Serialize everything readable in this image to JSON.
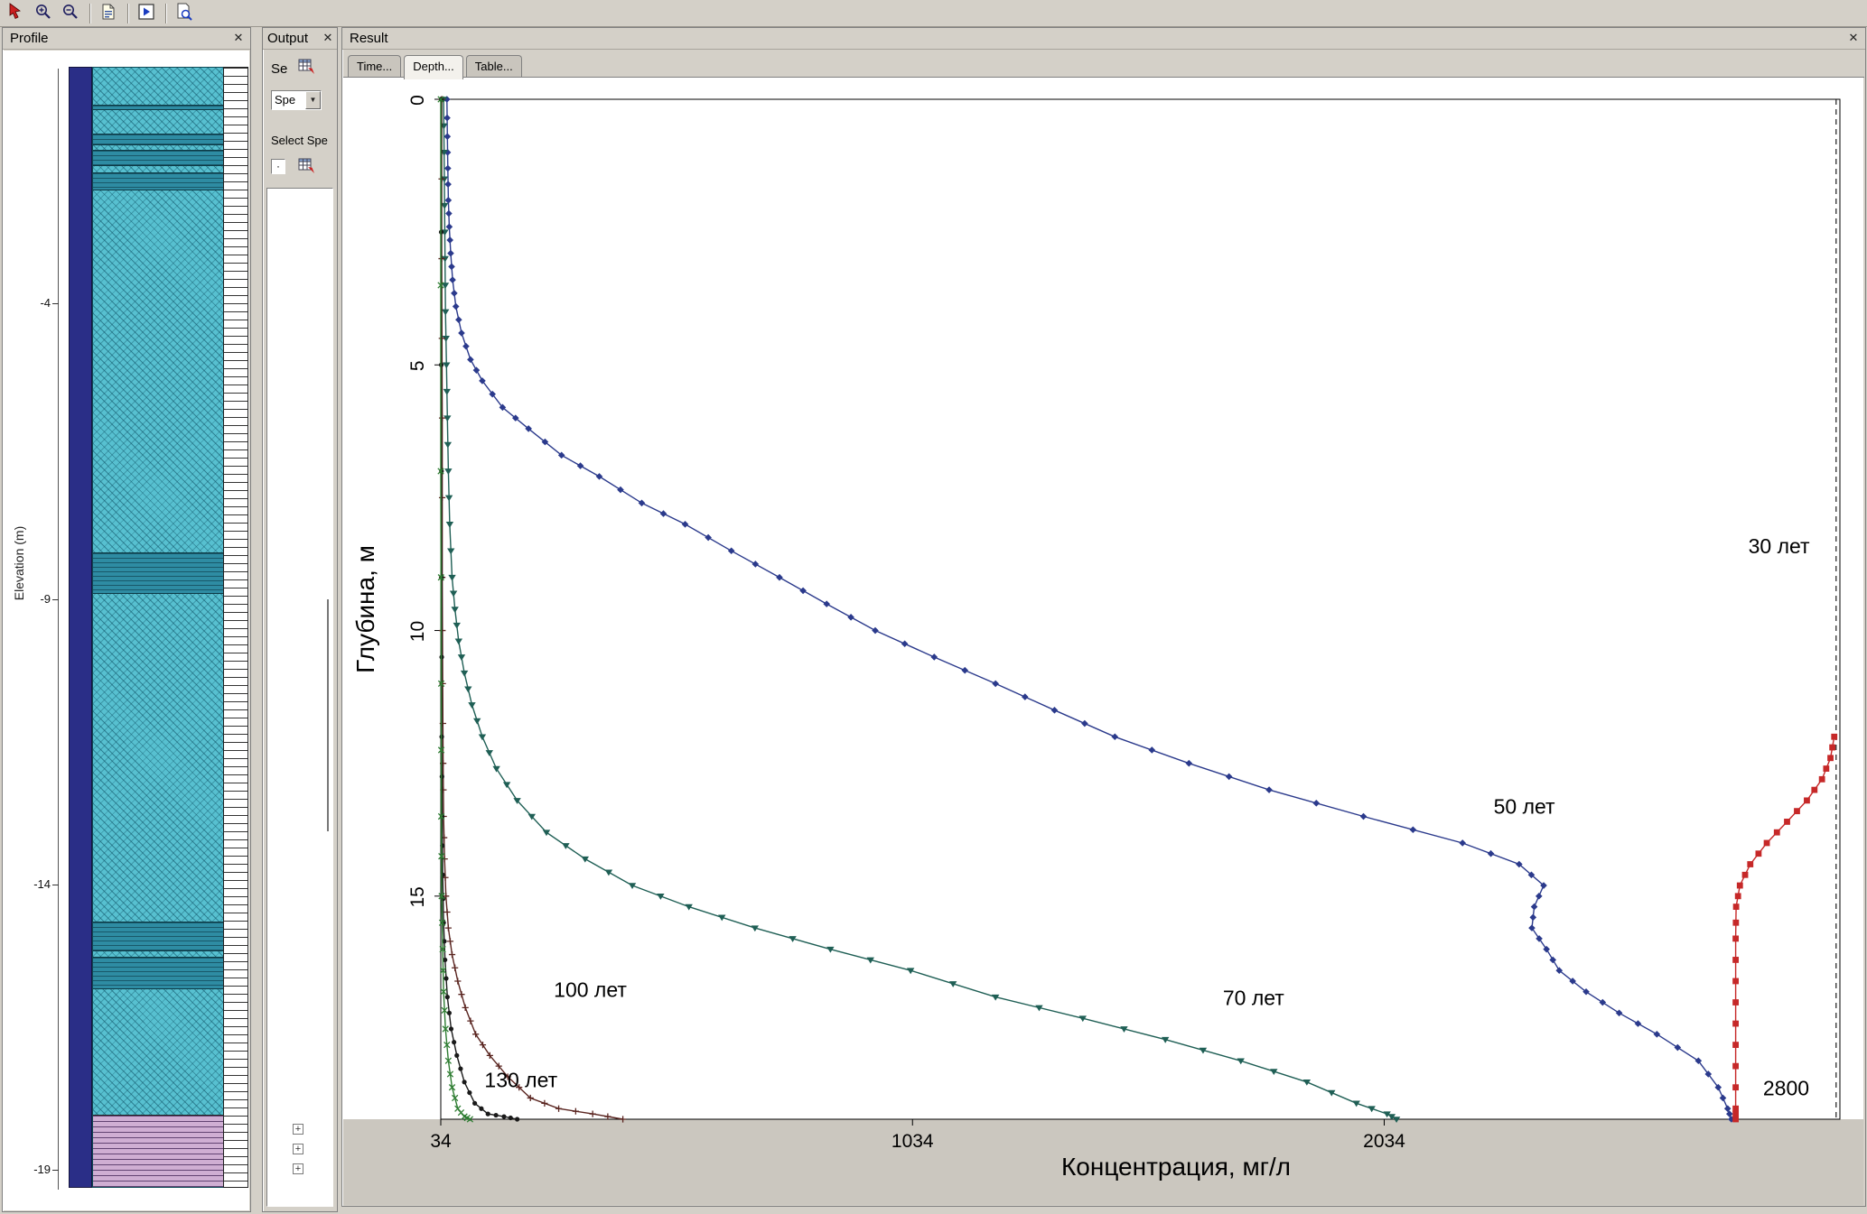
{
  "ui": {
    "close_glyph": "✕",
    "dropdown_glyph": "▼",
    "expand_glyph": "+",
    "mini_box_glyph": "·"
  },
  "theme": {
    "chrome": "#d4d0c8",
    "stripGray": "#cbc7bf",
    "soilBar": "#2a2e87",
    "soilTeal": "#57c0d0",
    "soilTealDark": "#2e8ca3",
    "soilPurple": "#cfaed3"
  },
  "toolbar": {
    "buttons": [
      "select-cursor-icon",
      "zoom-in-icon",
      "zoom-out-icon",
      "new-document-icon",
      "run-icon",
      "print-preview-icon"
    ]
  },
  "profile_panel": {
    "title": "Profile",
    "axis_label": "Elevation (m)",
    "ticks": [
      "-4",
      "-9",
      "-14",
      "-19"
    ]
  },
  "output_panel": {
    "title": "Output",
    "se_label": "Se",
    "combo_value": "Spe",
    "select_species_label": "Select Spe"
  },
  "result_panel": {
    "title": "Result",
    "tabs": [
      {
        "label": "Time...",
        "active": false
      },
      {
        "label": "Depth...",
        "active": true
      },
      {
        "label": "Table...",
        "active": false
      }
    ]
  },
  "chart_data": {
    "type": "line",
    "title": "",
    "xlabel": "Концентрация, мг/л",
    "ylabel": "Глубина, м",
    "xlim": [
      34,
      3000
    ],
    "ylim": [
      0,
      19.2
    ],
    "x_ticks": [
      34,
      1034,
      2034
    ],
    "y_ticks": [
      0,
      5,
      10,
      15
    ],
    "y_axis_inverted": true,
    "grid": false,
    "legend": "inline-annotations",
    "series": [
      {
        "name": "30 лет",
        "color": "#1a1a1a",
        "marker": "none",
        "dash": "6 5",
        "width": 1.2,
        "points": [
          [
            2992,
            0
          ],
          [
            2992,
            19.2
          ]
        ]
      },
      {
        "name": "50 лет",
        "color": "#2b3a8c",
        "marker": "diamond",
        "points": [
          [
            47,
            0
          ],
          [
            48,
            0.7
          ],
          [
            49,
            1.3
          ],
          [
            50,
            1.9
          ],
          [
            52,
            2.4
          ],
          [
            55,
            2.9
          ],
          [
            59,
            3.4
          ],
          [
            66,
            3.9
          ],
          [
            78,
            4.4
          ],
          [
            97,
            4.9
          ],
          [
            122,
            5.3
          ],
          [
            165,
            5.8
          ],
          [
            220,
            6.2
          ],
          [
            290,
            6.7
          ],
          [
            370,
            7.1
          ],
          [
            460,
            7.6
          ],
          [
            552,
            8.0
          ],
          [
            650,
            8.5
          ],
          [
            752,
            9.0
          ],
          [
            852,
            9.5
          ],
          [
            955,
            10.0
          ],
          [
            1080,
            10.5
          ],
          [
            1210,
            11.0
          ],
          [
            1335,
            11.5
          ],
          [
            1463,
            12.0
          ],
          [
            1620,
            12.5
          ],
          [
            1790,
            13.0
          ],
          [
            1990,
            13.5
          ],
          [
            2200,
            14.0
          ],
          [
            2320,
            14.4
          ],
          [
            2372,
            14.8
          ],
          [
            2352,
            15.2
          ],
          [
            2347,
            15.6
          ],
          [
            2378,
            16.0
          ],
          [
            2405,
            16.4
          ],
          [
            2462,
            16.8
          ],
          [
            2532,
            17.2
          ],
          [
            2612,
            17.6
          ],
          [
            2700,
            18.1
          ],
          [
            2742,
            18.6
          ],
          [
            2762,
            19.0
          ],
          [
            2770,
            19.2
          ]
        ]
      },
      {
        "name": "70 лет",
        "color": "#1f5f55",
        "marker": "triangle",
        "points": [
          [
            40,
            0
          ],
          [
            41,
            1
          ],
          [
            42,
            2
          ],
          [
            43,
            3
          ],
          [
            44,
            4
          ],
          [
            46,
            5
          ],
          [
            48,
            6
          ],
          [
            50,
            7
          ],
          [
            53,
            8
          ],
          [
            58,
            9
          ],
          [
            64,
            9.6
          ],
          [
            72,
            10.2
          ],
          [
            84,
            10.8
          ],
          [
            100,
            11.4
          ],
          [
            122,
            12.0
          ],
          [
            152,
            12.6
          ],
          [
            196,
            13.2
          ],
          [
            258,
            13.8
          ],
          [
            340,
            14.3
          ],
          [
            440,
            14.8
          ],
          [
            560,
            15.2
          ],
          [
            700,
            15.6
          ],
          [
            860,
            16.0
          ],
          [
            1030,
            16.4
          ],
          [
            1210,
            16.9
          ],
          [
            1395,
            17.3
          ],
          [
            1570,
            17.7
          ],
          [
            1730,
            18.1
          ],
          [
            1870,
            18.5
          ],
          [
            1975,
            18.9
          ],
          [
            2040,
            19.1
          ],
          [
            2060,
            19.2
          ]
        ]
      },
      {
        "name": "100 лет",
        "color": "#5a2520",
        "marker": "plus",
        "points": [
          [
            36,
            0
          ],
          [
            36,
            3
          ],
          [
            37,
            6
          ],
          [
            37,
            9
          ],
          [
            38,
            11
          ],
          [
            39,
            12.5
          ],
          [
            40,
            13.5
          ],
          [
            42,
            14.3
          ],
          [
            45,
            15.0
          ],
          [
            50,
            15.6
          ],
          [
            58,
            16.1
          ],
          [
            70,
            16.6
          ],
          [
            86,
            17.1
          ],
          [
            108,
            17.6
          ],
          [
            138,
            18.0
          ],
          [
            176,
            18.4
          ],
          [
            224,
            18.8
          ],
          [
            284,
            19.0
          ],
          [
            356,
            19.1
          ],
          [
            420,
            19.2
          ]
        ]
      },
      {
        "name": "130 лет",
        "color": "#1a1a1a",
        "marker": "dot",
        "points": [
          [
            35,
            0
          ],
          [
            35,
            5
          ],
          [
            36,
            9
          ],
          [
            36,
            12
          ],
          [
            37,
            13.5
          ],
          [
            38,
            14.6
          ],
          [
            40,
            15.5
          ],
          [
            43,
            16.2
          ],
          [
            48,
            16.9
          ],
          [
            56,
            17.5
          ],
          [
            68,
            18.0
          ],
          [
            84,
            18.5
          ],
          [
            106,
            18.9
          ],
          [
            134,
            19.1
          ],
          [
            168,
            19.15
          ],
          [
            196,
            19.2
          ]
        ]
      },
      {
        "name": "",
        "color": "#2e7d32",
        "marker": "x",
        "points": [
          [
            34,
            0
          ],
          [
            34,
            7
          ],
          [
            35,
            11
          ],
          [
            35,
            13.5
          ],
          [
            36,
            15.0
          ],
          [
            38,
            16.0
          ],
          [
            40,
            16.8
          ],
          [
            44,
            17.5
          ],
          [
            50,
            18.1
          ],
          [
            58,
            18.6
          ],
          [
            70,
            19.0
          ],
          [
            84,
            19.15
          ],
          [
            96,
            19.2
          ]
        ]
      },
      {
        "name": "2800",
        "color": "#c62828",
        "marker": "square",
        "points": [
          [
            2988,
            12.0
          ],
          [
            2980,
            12.4
          ],
          [
            2962,
            12.8
          ],
          [
            2930,
            13.2
          ],
          [
            2888,
            13.6
          ],
          [
            2845,
            14.0
          ],
          [
            2810,
            14.4
          ],
          [
            2788,
            14.8
          ],
          [
            2780,
            15.2
          ],
          [
            2779,
            15.8
          ],
          [
            2779,
            16.6
          ],
          [
            2779,
            17.4
          ],
          [
            2779,
            18.2
          ],
          [
            2779,
            19.0
          ],
          [
            2779,
            19.2
          ]
        ]
      }
    ],
    "annotations": [
      {
        "text": "30 лет",
        "c": 2871,
        "d": 8.55
      },
      {
        "text": "50 лет",
        "c": 2331,
        "d": 13.45
      },
      {
        "text": "70 лет",
        "c": 1757,
        "d": 17.05
      },
      {
        "text": "100 лет",
        "c": 351,
        "d": 16.9
      },
      {
        "text": "130  лет",
        "c": 204,
        "d": 18.6
      },
      {
        "text": "2800",
        "c": 2886,
        "d": 18.75
      }
    ]
  }
}
